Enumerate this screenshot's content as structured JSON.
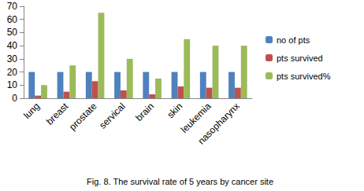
{
  "chart_data": {
    "type": "bar",
    "title": "Fig. 8. The survival rate of 5 years by cancer site",
    "categories": [
      "lung",
      "breast",
      "prostate",
      "servical",
      "brain",
      "skin",
      "leukemia",
      "nasopharynx"
    ],
    "series": [
      {
        "name": "no of pts",
        "color": "#4f81bd",
        "values": [
          20,
          20,
          20,
          20,
          20,
          20,
          20,
          20
        ]
      },
      {
        "name": "pts survived",
        "color": "#c0504d",
        "values": [
          2,
          5,
          13,
          6,
          3,
          9,
          8,
          8
        ]
      },
      {
        "name": "pts survived%",
        "color": "#9bbb59",
        "values": [
          10,
          25,
          65,
          30,
          15,
          45,
          40,
          40
        ]
      }
    ],
    "ylim": [
      0,
      70
    ],
    "yticks": [
      0,
      10,
      20,
      30,
      40,
      50,
      60,
      70
    ],
    "grid": false,
    "legend": "right"
  }
}
